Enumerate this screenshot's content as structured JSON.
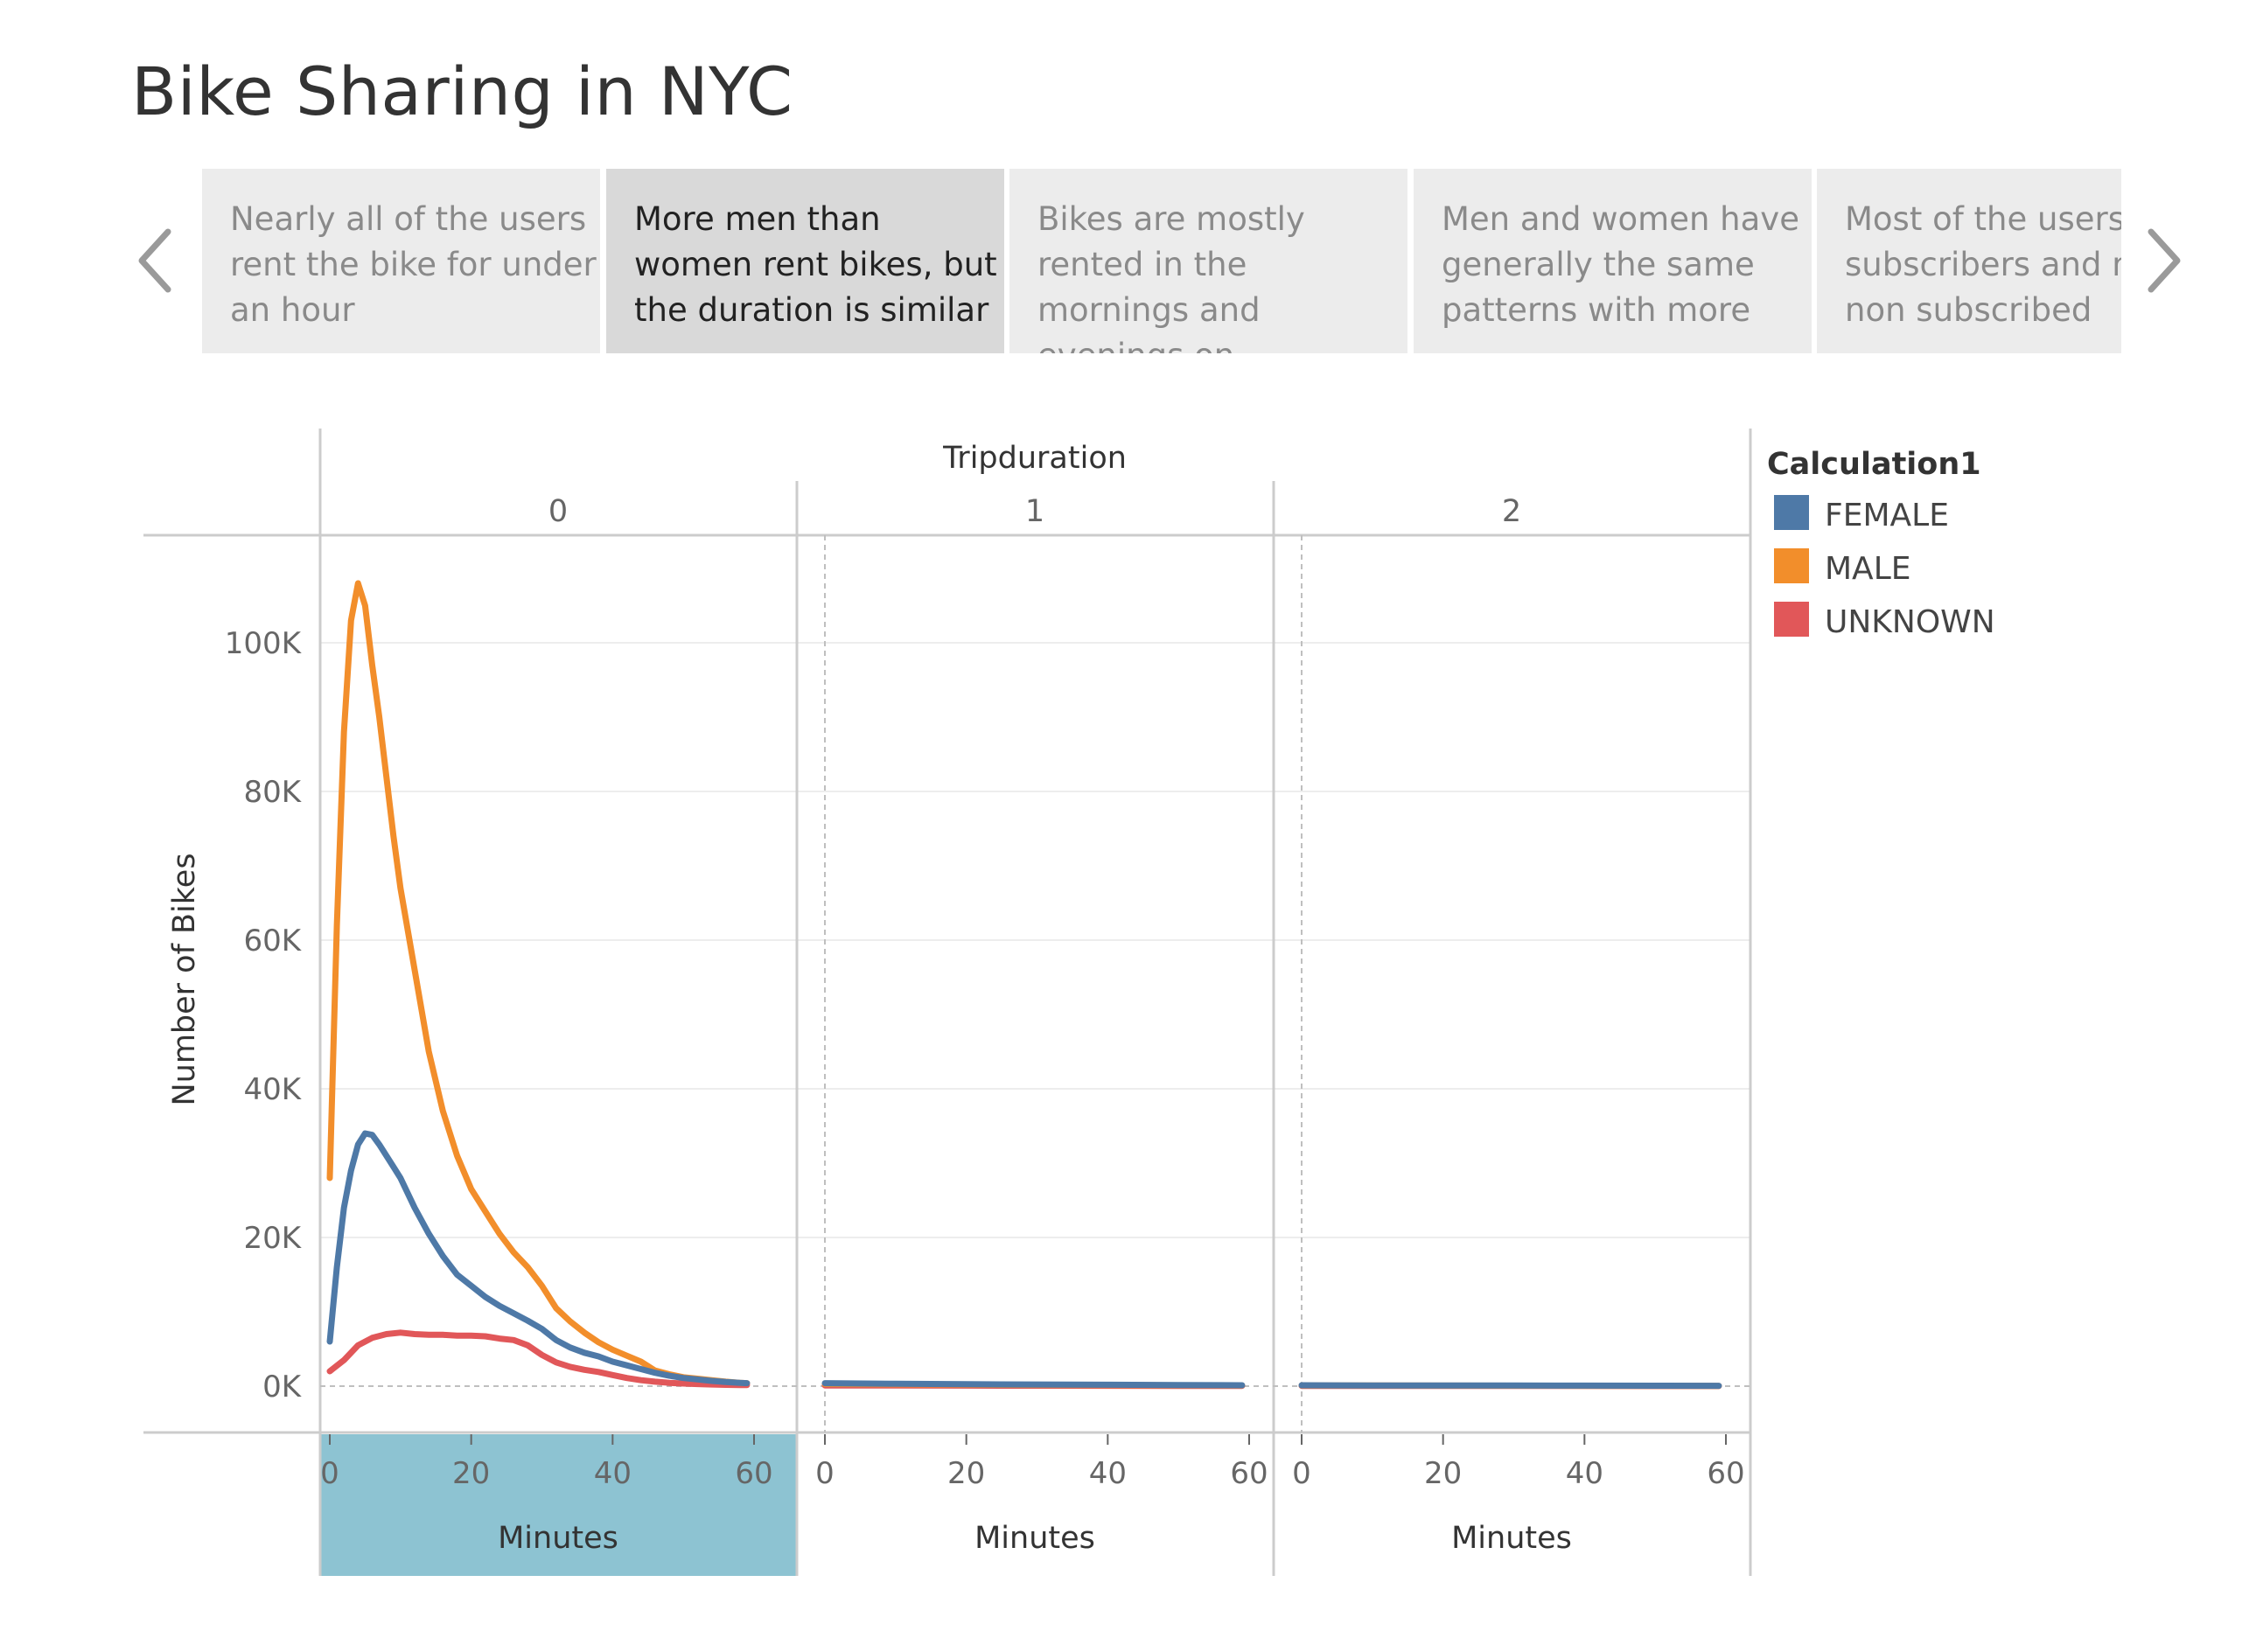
{
  "page_title": "Bike Sharing in NYC",
  "story_points": [
    {
      "text": "Nearly all of the users rent the bike for under an hour",
      "active": false
    },
    {
      "text": "More men than women rent bikes, but the duration is similar",
      "active": true
    },
    {
      "text": "Bikes are mostly rented in the mornings and evenings on",
      "active": false
    },
    {
      "text": "Men and women have generally the same patterns with more",
      "active": false
    },
    {
      "text": "Most of the users are subscribers and non non subscribed",
      "active": false
    }
  ],
  "nav": {
    "prev_icon": "chevron-left-icon",
    "next_icon": "chevron-right-icon"
  },
  "legend": {
    "title": "Calculation1",
    "items": [
      {
        "label": "FEMALE",
        "color": "#4e79a7"
      },
      {
        "label": "MALE",
        "color": "#f28e2b"
      },
      {
        "label": "UNKNOWN",
        "color": "#e15759"
      }
    ]
  },
  "highlight_color": "#8dc3d2",
  "chart_data": {
    "type": "line",
    "column_header": "Tripduration",
    "panes": [
      "0",
      "1",
      "2"
    ],
    "ylabel": "Number of Bikes",
    "xlabel": "Minutes",
    "ylim": [
      0,
      110000
    ],
    "yticks": [
      "0K",
      "20K",
      "40K",
      "60K",
      "80K",
      "100K"
    ],
    "ytick_values": [
      0,
      20000,
      40000,
      60000,
      80000,
      100000
    ],
    "xlim": [
      0,
      60
    ],
    "xticks": [
      "0",
      "20",
      "40",
      "60"
    ],
    "xtick_values": [
      0,
      20,
      40,
      60
    ],
    "highlighted_pane": "0",
    "grid": true,
    "legend_position": "right",
    "series": [
      {
        "name": "FEMALE",
        "panes": [
          {
            "x": [
              0,
              1,
              2,
              3,
              4,
              5,
              6,
              7,
              8,
              9,
              10,
              12,
              14,
              16,
              18,
              20,
              22,
              24,
              26,
              28,
              30,
              32,
              34,
              36,
              38,
              40,
              42,
              44,
              46,
              48,
              50,
              52,
              54,
              56,
              58,
              59
            ],
            "y": [
              6000,
              16000,
              24000,
              29000,
              32500,
              34000,
              33800,
              32500,
              31000,
              29500,
              28000,
              24000,
              20500,
              17500,
              15000,
              13500,
              12000,
              10800,
              9800,
              8800,
              7700,
              6200,
              5200,
              4500,
              4000,
              3300,
              2800,
              2300,
              1800,
              1400,
              1100,
              900,
              700,
              550,
              450,
              400
            ]
          },
          {
            "x": [
              0,
              10,
              20,
              30,
              40,
              50,
              59
            ],
            "y": [
              400,
              320,
              260,
              220,
              190,
              150,
              120
            ]
          },
          {
            "x": [
              0,
              10,
              20,
              30,
              40,
              50,
              59
            ],
            "y": [
              120,
              100,
              90,
              80,
              70,
              60,
              50
            ]
          }
        ]
      },
      {
        "name": "MALE",
        "panes": [
          {
            "x": [
              0,
              1,
              2,
              3,
              4,
              5,
              6,
              7,
              8,
              9,
              10,
              12,
              14,
              16,
              18,
              20,
              22,
              24,
              26,
              28,
              30,
              32,
              34,
              36,
              38,
              40,
              42,
              44,
              46,
              48,
              50,
              52,
              54,
              56,
              58,
              59
            ],
            "y": [
              28000,
              62000,
              88000,
              103000,
              108000,
              105000,
              97000,
              90000,
              82000,
              74000,
              67000,
              56000,
              45000,
              37000,
              31000,
              26500,
              23500,
              20500,
              18000,
              16000,
              13500,
              10500,
              8700,
              7200,
              5900,
              4900,
              4100,
              3300,
              2100,
              1600,
              1200,
              1000,
              800,
              600,
              450,
              400
            ]
          },
          {
            "x": [
              0,
              10,
              20,
              30,
              40,
              50,
              59
            ],
            "y": [
              300,
              250,
              200,
              170,
              140,
              120,
              100
            ]
          },
          {
            "x": [
              0,
              10,
              20,
              30,
              40,
              50,
              59
            ],
            "y": [
              100,
              80,
              70,
              60,
              50,
              45,
              40
            ]
          }
        ]
      },
      {
        "name": "UNKNOWN",
        "panes": [
          {
            "x": [
              0,
              2,
              4,
              6,
              8,
              10,
              12,
              14,
              16,
              18,
              20,
              22,
              24,
              26,
              28,
              30,
              32,
              34,
              36,
              38,
              40,
              42,
              44,
              46,
              48,
              50,
              52,
              54,
              56,
              58,
              59
            ],
            "y": [
              2000,
              3500,
              5500,
              6500,
              7000,
              7200,
              7000,
              6900,
              6900,
              6800,
              6800,
              6700,
              6400,
              6200,
              5500,
              4200,
              3200,
              2600,
              2200,
              1900,
              1500,
              1100,
              800,
              600,
              450,
              350,
              280,
              220,
              180,
              150,
              140
            ]
          },
          {
            "x": [
              0,
              10,
              20,
              30,
              40,
              50,
              59
            ],
            "y": [
              100,
              80,
              70,
              60,
              50,
              40,
              30
            ]
          },
          {
            "x": [
              0,
              10,
              20,
              30,
              40,
              50,
              59
            ],
            "y": [
              40,
              30,
              25,
              20,
              20,
              15,
              15
            ]
          }
        ]
      }
    ]
  }
}
